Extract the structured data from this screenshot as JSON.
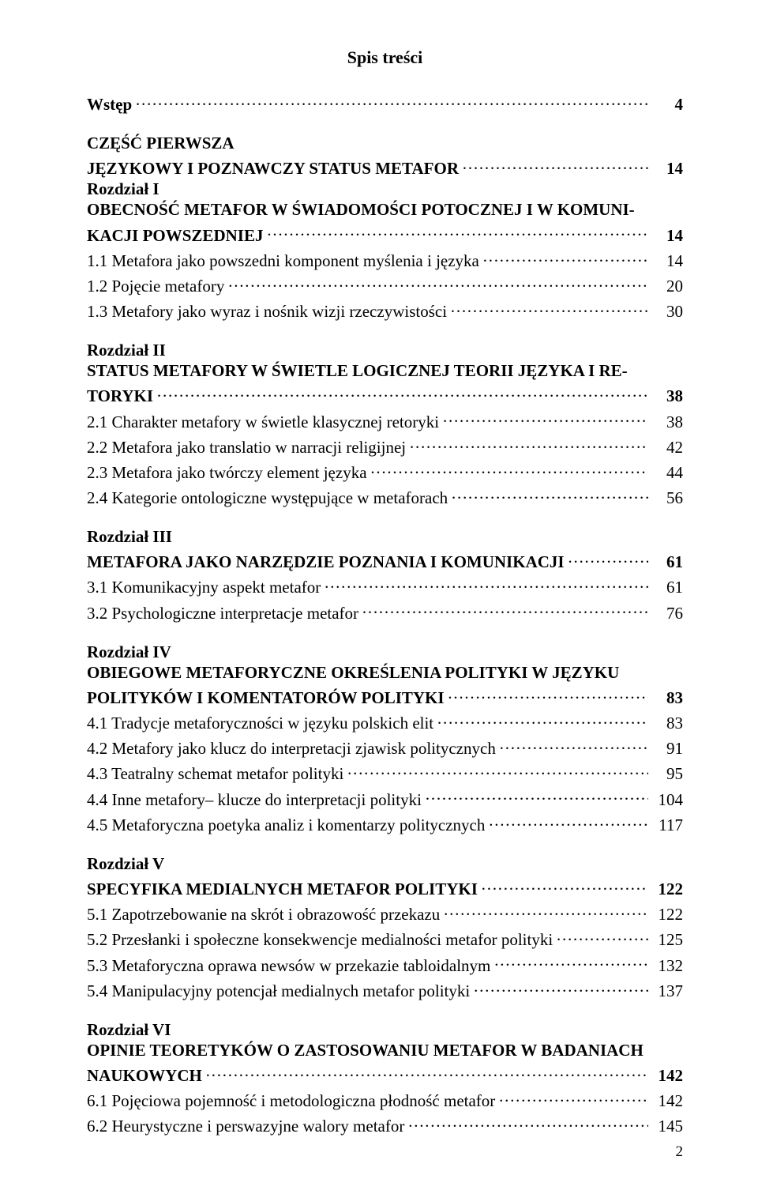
{
  "pageNumber": "2",
  "title": "Spis treści",
  "sections": [
    {
      "lines": [
        {
          "bold": true,
          "label": "Wstęp",
          "page": "4",
          "leader": "dots"
        }
      ]
    },
    {
      "lines": [
        {
          "bold": true,
          "label": "CZĘŚĆ PIERWSZA",
          "page": "",
          "noflex": true
        },
        {
          "bold": true,
          "label": "JĘZYKOWY I POZNAWCZY STATUS METAFOR",
          "page": "14",
          "leader": "dots"
        },
        {
          "bold": true,
          "label": "Rozdział I",
          "page": "",
          "noflex": true
        },
        {
          "bold": true,
          "label": "OBECNOŚĆ METAFOR W ŚWIADOMOŚCI POTOCZNEJ I W KOMUNI-",
          "page": "",
          "noflex": true
        },
        {
          "bold": true,
          "label": "KACJI POWSZEDNIEJ",
          "page": "14",
          "leader": "dots"
        },
        {
          "bold": false,
          "label": "1.1 Metafora jako powszedni komponent myślenia i języka",
          "page": "14",
          "leader": "dots"
        },
        {
          "bold": false,
          "label": "1.2 Pojęcie metafory",
          "page": "20",
          "leader": "dots"
        },
        {
          "bold": false,
          "label": "1.3 Metafory jako wyraz i nośnik wizji rzeczywistości",
          "page": "30",
          "leader": "dots"
        }
      ]
    },
    {
      "lines": [
        {
          "bold": true,
          "label": "Rozdział II",
          "page": "",
          "noflex": true
        },
        {
          "bold": true,
          "label": "STATUS METAFORY W ŚWIETLE LOGICZNEJ TEORII JĘZYKA I RE-",
          "page": "",
          "noflex": true
        },
        {
          "bold": true,
          "label": "TORYKI",
          "page": "38",
          "leader": "dots"
        },
        {
          "bold": false,
          "label": "2.1 Charakter metafory w świetle klasycznej retoryki",
          "page": "38",
          "leader": "dots"
        },
        {
          "bold": false,
          "label": "2.2 Metafora jako translatio w narracji religijnej",
          "page": "42",
          "leader": "dots"
        },
        {
          "bold": false,
          "label": "2.3 Metafora jako twórczy element języka",
          "page": "44",
          "leader": "dots"
        },
        {
          "bold": false,
          "label": "2.4 Kategorie ontologiczne występujące w metaforach",
          "page": "56",
          "leader": "dots"
        }
      ]
    },
    {
      "lines": [
        {
          "bold": true,
          "label": "Rozdział III",
          "page": "",
          "noflex": true
        },
        {
          "bold": true,
          "label": "METAFORA JAKO NARZĘDZIE POZNANIA I KOMUNIKACJI",
          "page": "61",
          "leader": "dots"
        },
        {
          "bold": false,
          "label": "3.1 Komunikacyjny aspekt metafor",
          "page": "61",
          "leader": "dots"
        },
        {
          "bold": false,
          "label": "3.2 Psychologiczne interpretacje metafor",
          "page": "76",
          "leader": "dots"
        }
      ]
    },
    {
      "lines": [
        {
          "bold": true,
          "label": "Rozdział IV",
          "page": "",
          "noflex": true
        },
        {
          "bold": true,
          "label": "OBIEGOWE METAFORYCZNE OKREŚLENIA POLITYKI W JĘZYKU",
          "page": "",
          "noflex": true
        },
        {
          "bold": true,
          "label": "POLITYKÓW I KOMENTATORÓW POLITYKI",
          "page": "83",
          "leader": "dots"
        },
        {
          "bold": false,
          "label": "4.1 Tradycje metaforyczności w języku polskich elit",
          "page": "83",
          "leader": "dots"
        },
        {
          "bold": false,
          "label": "4.2  Metafory jako klucz do interpretacji zjawisk politycznych",
          "page": "91",
          "leader": "dots"
        },
        {
          "bold": false,
          "label": "4.3 Teatralny schemat metafor polityki",
          "page": "95",
          "leader": "dots"
        },
        {
          "bold": false,
          "label": "4.4  Inne metafory– klucze do interpretacji polityki",
          "page": "104",
          "leader": "dots"
        },
        {
          "bold": false,
          "label": "4.5  Metaforyczna poetyka analiz i komentarzy politycznych",
          "page": "117",
          "leader": "dots"
        }
      ]
    },
    {
      "lines": [
        {
          "bold": true,
          "label": "Rozdział V",
          "page": "",
          "noflex": true
        },
        {
          "bold": true,
          "label": "SPECYFIKA MEDIALNYCH METAFOR POLITYKI",
          "page": "122",
          "leader": "dots"
        },
        {
          "bold": false,
          "label": "5.1 Zapotrzebowanie na skrót i obrazowość przekazu",
          "page": "122",
          "leader": "dots"
        },
        {
          "bold": false,
          "label": "5.2 Przesłanki i społeczne konsekwencje medialności metafor polityki",
          "page": "125",
          "leader": "dots"
        },
        {
          "bold": false,
          "label": "5.3 Metaforyczna oprawa newsów w przekazie tabloidalnym",
          "page": "132",
          "leader": "dots"
        },
        {
          "bold": false,
          "label": "5.4 Manipulacyjny potencjał medialnych metafor polityki",
          "page": "137",
          "leader": "dots"
        }
      ]
    },
    {
      "lines": [
        {
          "bold": true,
          "label": "Rozdział VI",
          "page": "",
          "noflex": true
        },
        {
          "bold": true,
          "label": "OPINIE TEORETYKÓW O ZASTOSOWANIU METAFOR W BADANIACH",
          "page": "",
          "noflex": true
        },
        {
          "bold": true,
          "label": "NAUKOWYCH",
          "page": "142",
          "leader": "dots"
        },
        {
          "bold": false,
          "label": "6.1 Pojęciowa pojemność i metodologiczna płodność metafor",
          "page": "142",
          "leader": "dots"
        },
        {
          "bold": false,
          "label": "6.2 Heurystyczne i perswazyjne walory metafor",
          "page": "145",
          "leader": "dots"
        }
      ]
    }
  ]
}
